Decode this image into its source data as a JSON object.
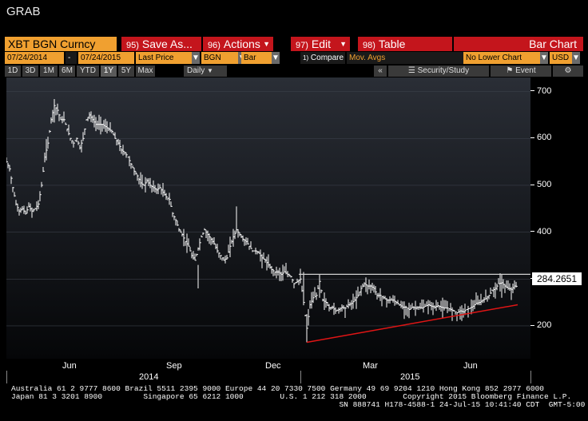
{
  "window_title": "GRAB",
  "toolbar": {
    "ticker": "XBT BGN Curncy",
    "buttons": [
      {
        "num": "95)",
        "label": "Save As..."
      },
      {
        "num": "96)",
        "label": "Actions"
      },
      {
        "num": "97)",
        "label": "Edit"
      },
      {
        "num": "98)",
        "label": "Table"
      }
    ],
    "chart_type_label": "Bar Chart"
  },
  "params": {
    "start_date": "07/24/2014",
    "dash": "-",
    "end_date": "07/24/2015",
    "field": "Last Price",
    "source": "BGN",
    "style": "Bar",
    "compare_num": "1)",
    "compare_label": "Compare",
    "compare_value": "Mov. Avgs",
    "lower_chart": "No Lower Chart",
    "currency": "USD"
  },
  "periods": [
    "1D",
    "3D",
    "1M",
    "6M",
    "YTD",
    "1Y",
    "5Y",
    "Max"
  ],
  "active_period": "1Y",
  "frequency": "Daily",
  "security_study_label": "Security/Study",
  "event_label": "Event",
  "chart_data": {
    "type": "bar",
    "series_points": [
      [
        0,
        550
      ],
      [
        4,
        535
      ],
      [
        8,
        495
      ],
      [
        12,
        460
      ],
      [
        16,
        445
      ],
      [
        20,
        450
      ],
      [
        24,
        440
      ],
      [
        28,
        455
      ],
      [
        32,
        445
      ],
      [
        36,
        450
      ],
      [
        40,
        460
      ],
      [
        44,
        500
      ],
      [
        48,
        560
      ],
      [
        52,
        590
      ],
      [
        56,
        640
      ],
      [
        60,
        670
      ],
      [
        64,
        660
      ],
      [
        68,
        640
      ],
      [
        72,
        640
      ],
      [
        76,
        620
      ],
      [
        80,
        600
      ],
      [
        84,
        590
      ],
      [
        88,
        600
      ],
      [
        92,
        580
      ],
      [
        96,
        600
      ],
      [
        100,
        640
      ],
      [
        104,
        650
      ],
      [
        108,
        640
      ],
      [
        112,
        630
      ],
      [
        116,
        630
      ],
      [
        120,
        630
      ],
      [
        124,
        625
      ],
      [
        128,
        620
      ],
      [
        132,
        615
      ],
      [
        136,
        600
      ],
      [
        140,
        590
      ],
      [
        144,
        575
      ],
      [
        148,
        570
      ],
      [
        152,
        560
      ],
      [
        156,
        545
      ],
      [
        160,
        530
      ],
      [
        164,
        520
      ],
      [
        168,
        505
      ],
      [
        172,
        500
      ],
      [
        176,
        510
      ],
      [
        180,
        500
      ],
      [
        184,
        495
      ],
      [
        188,
        490
      ],
      [
        192,
        495
      ],
      [
        196,
        485
      ],
      [
        200,
        475
      ],
      [
        204,
        470
      ],
      [
        208,
        440
      ],
      [
        212,
        425
      ],
      [
        216,
        405
      ],
      [
        220,
        395
      ],
      [
        224,
        380
      ],
      [
        228,
        370
      ],
      [
        232,
        350
      ],
      [
        236,
        340
      ],
      [
        240,
        365
      ],
      [
        244,
        390
      ],
      [
        248,
        405
      ],
      [
        252,
        395
      ],
      [
        256,
        385
      ],
      [
        260,
        375
      ],
      [
        264,
        360
      ],
      [
        268,
        350
      ],
      [
        272,
        340
      ],
      [
        276,
        345
      ],
      [
        280,
        370
      ],
      [
        284,
        390
      ],
      [
        288,
        405
      ],
      [
        292,
        395
      ],
      [
        296,
        385
      ],
      [
        300,
        380
      ],
      [
        304,
        370
      ],
      [
        308,
        360
      ],
      [
        312,
        360
      ],
      [
        316,
        355
      ],
      [
        320,
        345
      ],
      [
        324,
        340
      ],
      [
        328,
        330
      ],
      [
        332,
        320
      ],
      [
        336,
        315
      ],
      [
        340,
        315
      ],
      [
        344,
        310
      ],
      [
        348,
        315
      ],
      [
        352,
        310
      ],
      [
        356,
        305
      ],
      [
        360,
        290
      ],
      [
        364,
        295
      ],
      [
        368,
        300
      ],
      [
        372,
        250
      ],
      [
        376,
        195
      ],
      [
        380,
        245
      ],
      [
        384,
        260
      ],
      [
        388,
        265
      ],
      [
        392,
        295
      ],
      [
        396,
        255
      ],
      [
        400,
        250
      ],
      [
        404,
        238
      ],
      [
        408,
        240
      ],
      [
        412,
        232
      ],
      [
        416,
        235
      ],
      [
        420,
        240
      ],
      [
        424,
        238
      ],
      [
        428,
        245
      ],
      [
        432,
        248
      ],
      [
        436,
        255
      ],
      [
        440,
        265
      ],
      [
        444,
        280
      ],
      [
        448,
        290
      ],
      [
        452,
        285
      ],
      [
        456,
        285
      ],
      [
        460,
        280
      ],
      [
        464,
        265
      ],
      [
        468,
        265
      ],
      [
        472,
        260
      ],
      [
        476,
        255
      ],
      [
        480,
        255
      ],
      [
        484,
        255
      ],
      [
        488,
        250
      ],
      [
        492,
        245
      ],
      [
        496,
        240
      ],
      [
        500,
        240
      ],
      [
        504,
        235
      ],
      [
        508,
        240
      ],
      [
        512,
        238
      ],
      [
        516,
        240
      ],
      [
        520,
        238
      ],
      [
        524,
        242
      ],
      [
        528,
        245
      ],
      [
        532,
        242
      ],
      [
        536,
        240
      ],
      [
        540,
        243
      ],
      [
        544,
        240
      ],
      [
        548,
        238
      ],
      [
        552,
        238
      ],
      [
        556,
        235
      ],
      [
        560,
        232
      ],
      [
        564,
        228
      ],
      [
        568,
        232
      ],
      [
        572,
        230
      ],
      [
        576,
        235
      ],
      [
        580,
        238
      ],
      [
        584,
        242
      ],
      [
        588,
        248
      ],
      [
        592,
        250
      ],
      [
        596,
        255
      ],
      [
        600,
        258
      ],
      [
        604,
        265
      ],
      [
        608,
        275
      ],
      [
        612,
        280
      ],
      [
        616,
        290
      ],
      [
        620,
        292
      ],
      [
        624,
        285
      ],
      [
        628,
        280
      ],
      [
        632,
        278
      ],
      [
        636,
        285
      ],
      [
        640,
        284
      ]
    ],
    "ylim": [
      130,
      730
    ],
    "yticks": [
      200,
      300,
      400,
      500,
      600,
      700
    ],
    "last_price": "284.2651",
    "month_labels": [
      {
        "label": "Jun",
        "x": 80
      },
      {
        "label": "Sep",
        "x": 210
      },
      {
        "label": "Dec",
        "x": 334
      },
      {
        "label": "Mar",
        "x": 456
      },
      {
        "label": "Jun",
        "x": 582
      }
    ],
    "year_labels": [
      {
        "label": "2014",
        "x": 178
      },
      {
        "label": "2015",
        "x": 505
      }
    ],
    "resistance_line": {
      "x1": 366,
      "y1": 310,
      "x2": 656,
      "y2": 310
    },
    "support_line": {
      "x1": 376,
      "y1": 165,
      "x2": 640,
      "y2": 245
    },
    "colors": {
      "bars": "#ffffff",
      "resistance": "#d0d0d0",
      "support": "#e01515"
    }
  },
  "footer": {
    "line1": "Australia 61 2 9777 8600 Brazil 5511 2395 9000 Europe 44 20 7330 7500 Germany 49 69 9204 1210 Hong Kong 852 2977 6000",
    "line2": "Japan 81 3 3201 8900         Singapore 65 6212 1000        U.S. 1 212 318 2000        Copyright 2015 Bloomberg Finance L.P.",
    "line3": "                                                                        SN 888741 H178-4588-1 24-Jul-15 10:41:40 CDT  GMT-5:00"
  }
}
